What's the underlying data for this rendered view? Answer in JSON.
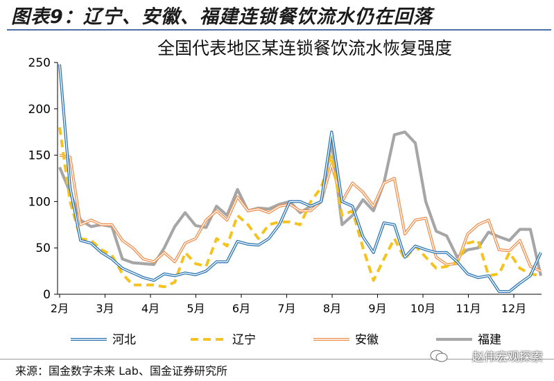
{
  "figure": {
    "title": "图表9：辽宁、安徽、福建连锁餐饮流水仍在回落",
    "source": "来源：国金数字未来 Lab、国金证券研究所",
    "watermark": "赵伟宏观探索"
  },
  "chart_data": {
    "type": "line",
    "title": "全国代表地区某连锁餐饮流水恢复强度",
    "xlabel": "",
    "ylabel": "",
    "x_tick_labels": [
      "2月",
      "3月",
      "4月",
      "5月",
      "6月",
      "7月",
      "8月",
      "9月",
      "10月",
      "11月",
      "12月"
    ],
    "y_ticks": [
      0,
      50,
      100,
      150,
      200,
      250
    ],
    "ylim": [
      0,
      250
    ],
    "grid": false,
    "legend_position": "bottom",
    "series": [
      {
        "name": "河北",
        "color": "#2a74b4",
        "style": "solid-double",
        "values": [
          248,
          115,
          58,
          55,
          45,
          38,
          28,
          23,
          18,
          15,
          22,
          20,
          23,
          21,
          25,
          35,
          35,
          57,
          54,
          53,
          60,
          75,
          100,
          100,
          95,
          100,
          175,
          100,
          95,
          62,
          45,
          77,
          75,
          40,
          52,
          48,
          45,
          45,
          35,
          22,
          18,
          20,
          3,
          3,
          12,
          20,
          45
        ]
      },
      {
        "name": "辽宁",
        "color": "#f5c21e",
        "style": "dashed",
        "values": [
          180,
          100,
          60,
          58,
          48,
          42,
          22,
          10,
          10,
          10,
          8,
          13,
          45,
          33,
          30,
          60,
          52,
          85,
          75,
          60,
          75,
          78,
          78,
          75,
          100,
          115,
          150,
          85,
          90,
          50,
          15,
          38,
          60,
          38,
          52,
          40,
          28,
          30,
          35,
          55,
          58,
          20,
          22,
          45,
          28,
          22,
          20
        ]
      },
      {
        "name": "安徽",
        "color": "#ee8f4e",
        "style": "solid-double",
        "values": [
          150,
          148,
          75,
          80,
          75,
          75,
          58,
          50,
          38,
          35,
          45,
          35,
          55,
          60,
          80,
          90,
          80,
          105,
          90,
          92,
          88,
          95,
          97,
          90,
          90,
          100,
          140,
          100,
          120,
          110,
          95,
          120,
          125,
          65,
          80,
          82,
          40,
          32,
          33,
          65,
          75,
          80,
          48,
          47,
          58,
          30,
          25
        ]
      },
      {
        "name": "福建",
        "color": "#a6a6a6",
        "style": "solid-thick",
        "values": [
          137,
          110,
          80,
          73,
          75,
          73,
          38,
          34,
          33,
          32,
          50,
          73,
          88,
          74,
          72,
          95,
          85,
          113,
          90,
          93,
          92,
          97,
          100,
          88,
          95,
          100,
          165,
          75,
          85,
          102,
          90,
          120,
          172,
          175,
          163,
          100,
          68,
          63,
          40,
          48,
          50,
          67,
          62,
          58,
          70,
          70,
          20
        ]
      }
    ]
  }
}
